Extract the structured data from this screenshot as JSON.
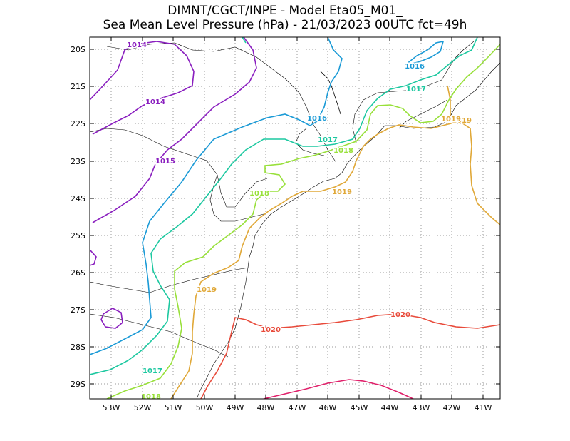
{
  "title": {
    "line1": "DIMNT/CGCT/INPE  -  Model Eta05_M01_",
    "line2": "Sea Mean Level Pressure (hPa) - 21/03/2023 00UTC fct=49h"
  },
  "axes": {
    "lat_labels": [
      "20S",
      "21S",
      "22S",
      "23S",
      "24S",
      "25S",
      "26S",
      "27S",
      "28S",
      "29S"
    ],
    "lon_labels": [
      "53W",
      "52W",
      "51W",
      "50W",
      "49W",
      "48W",
      "47W",
      "46W",
      "45W",
      "44W",
      "43W",
      "42W",
      "41W"
    ]
  },
  "contour_labels": [
    {
      "text": "1014",
      "color": "#8a1fbf"
    },
    {
      "text": "1014",
      "color": "#8a1fbf"
    },
    {
      "text": "1015",
      "color": "#8a1fbf"
    },
    {
      "text": "1016",
      "color": "#1a9ad6"
    },
    {
      "text": "1016",
      "color": "#1a9ad6"
    },
    {
      "text": "1017",
      "color": "#1cc8a0"
    },
    {
      "text": "1017",
      "color": "#1cc8a0"
    },
    {
      "text": "1017",
      "color": "#1cc8a0"
    },
    {
      "text": "1018",
      "color": "#98e03a"
    },
    {
      "text": "1018",
      "color": "#98e03a"
    },
    {
      "text": "1018",
      "color": "#98e03a"
    },
    {
      "text": "1019",
      "color": "#e0a838"
    },
    {
      "text": "1019",
      "color": "#e0a838"
    },
    {
      "text": "1019",
      "color": "#e0a838"
    },
    {
      "text": "1019",
      "color": "#e0a838"
    },
    {
      "text": "1020",
      "color": "#e84a3a"
    },
    {
      "text": "1020",
      "color": "#e84a3a"
    }
  ],
  "colors": {
    "iso1014": "#8a1fbf",
    "iso1016": "#1a9ad6",
    "iso1017": "#1cc8a0",
    "iso1018": "#98e03a",
    "iso1019": "#e0a838",
    "iso1020": "#e84a3a",
    "iso1021": "#e0206a"
  }
}
